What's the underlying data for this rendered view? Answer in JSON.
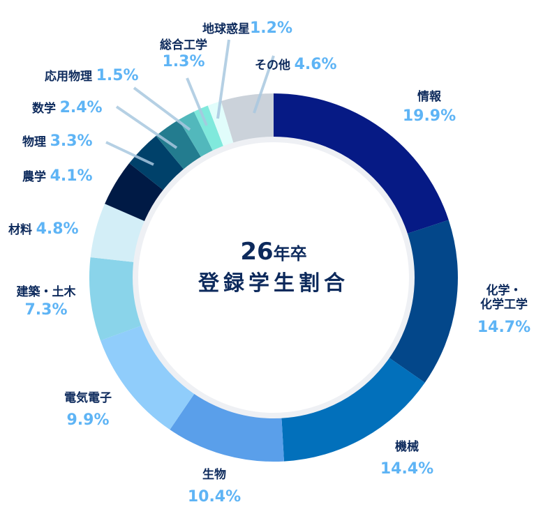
{
  "center": {
    "year": "26",
    "year_suffix": "年卒",
    "subtitle": "登録学生割合"
  },
  "colors": {
    "label": "#0d2a5c",
    "percent": "#5eb4f5",
    "leader": "#a9c8e0",
    "inner_ring": "#eef0f4"
  },
  "chart_data": {
    "type": "pie",
    "variant": "donut",
    "title": "26年卒 登録学生割合",
    "unit": "%",
    "categories": [
      "情報",
      "化学・化学工学",
      "機械",
      "生物",
      "電気電子",
      "建築・土木",
      "材料",
      "農学",
      "物理",
      "数学",
      "応用物理",
      "総合工学",
      "地球惑星",
      "その他"
    ],
    "values": [
      19.9,
      14.7,
      14.4,
      10.4,
      9.9,
      7.3,
      4.8,
      4.1,
      3.3,
      2.4,
      1.5,
      1.3,
      1.2,
      4.6
    ],
    "colors": [
      "#061a85",
      "#03478a",
      "#0270bb",
      "#5a9fea",
      "#90cdfb",
      "#8ad4ea",
      "#d3eef7",
      "#001a45",
      "#00416a",
      "#237c8f",
      "#52b8bc",
      "#80e9dc",
      "#e1fdfb",
      "#cbd2da"
    ],
    "start_angle_deg": 0,
    "direction": "clockwise",
    "legend": "none (direct labels)"
  },
  "labels": [
    {
      "name": "情報",
      "pct": "19.9%"
    },
    {
      "name": "化学・",
      "name2": "化学工学",
      "pct": "14.7%"
    },
    {
      "name": "機械",
      "pct": "14.4%"
    },
    {
      "name": "生物",
      "pct": "10.4%"
    },
    {
      "name": "電気電子",
      "pct": "9.9%"
    },
    {
      "name": "建築・土木",
      "pct": "7.3%"
    },
    {
      "name": "材料",
      "pct": "4.8%"
    },
    {
      "name": "農学",
      "pct": "4.1%"
    },
    {
      "name": "物理",
      "pct": "3.3%"
    },
    {
      "name": "数学",
      "pct": "2.4%"
    },
    {
      "name": "応用物理",
      "pct": "1.5%"
    },
    {
      "name": "総合工学",
      "pct": "1.3%"
    },
    {
      "name": "地球惑星",
      "pct": "1.2%"
    },
    {
      "name": "その他",
      "pct": "4.6%"
    }
  ]
}
